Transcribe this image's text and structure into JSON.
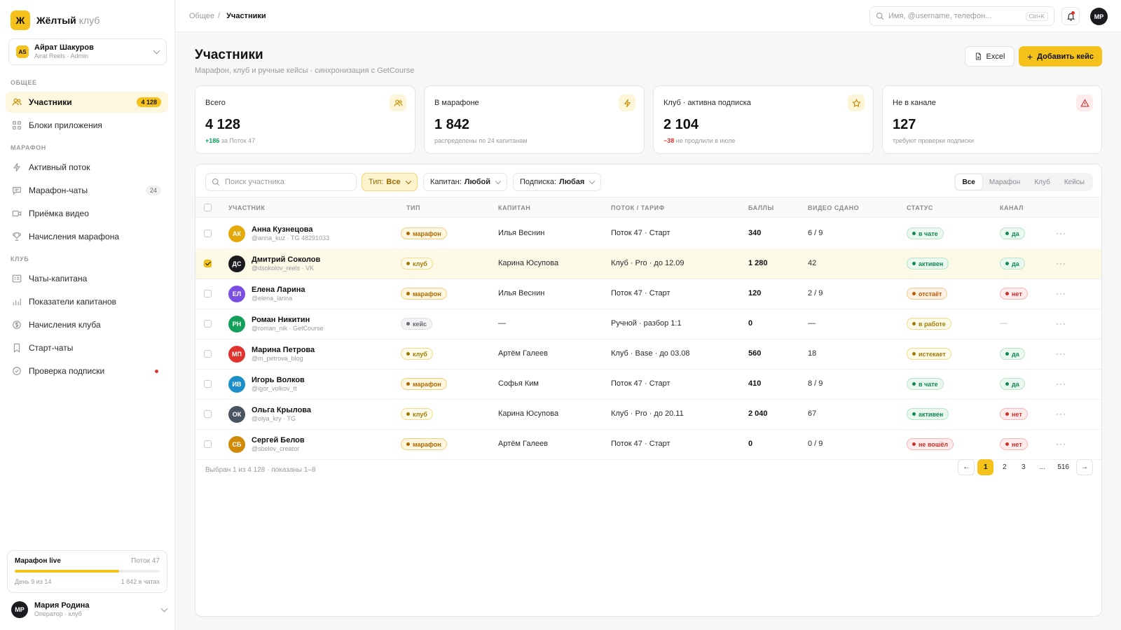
{
  "brand": {
    "mark": "Ж",
    "name": "Жёлтый",
    "name_suffix": "клуб"
  },
  "workspace": {
    "avatar": "AS",
    "name": "Айрат Шакуров",
    "sub": "Airat Reels · Admin"
  },
  "nav": {
    "section_general": "ОБЩЕЕ",
    "section_marathon": "МАРАФОН",
    "section_club": "КЛУБ",
    "items": [
      {
        "label": "Участники",
        "icon": "users-icon",
        "badge": "4 128"
      },
      {
        "label": "Блоки приложения",
        "icon": "grid-icon"
      },
      {
        "label": "Активный поток",
        "icon": "bolt-icon"
      },
      {
        "label": "Марафон-чаты",
        "icon": "chat-icon",
        "badge": "24"
      },
      {
        "label": "Приёмка видео",
        "icon": "video-icon"
      },
      {
        "label": "Начисления марафона",
        "icon": "trophy-icon"
      },
      {
        "label": "Чаты-капитана",
        "icon": "list-icon"
      },
      {
        "label": "Показатели капитанов",
        "icon": "chart-icon"
      },
      {
        "label": "Начисления клуба",
        "icon": "coin-icon"
      },
      {
        "label": "Старт-чаты",
        "icon": "bookmark-icon"
      },
      {
        "label": "Проверка подписки",
        "icon": "check-circle-icon"
      }
    ]
  },
  "live": {
    "title": "Марафон live",
    "stream": "Поток 47",
    "progress": 0.72,
    "day": "День 9 из 14",
    "in_chats": "1 842 в чатах"
  },
  "me": {
    "avatar": "МР",
    "name": "Мария Родина",
    "sub": "Оператор · клуб"
  },
  "topbar": {
    "crumb_parent": "Общее",
    "crumb_sep": "/",
    "crumb_current": "Участники",
    "search_placeholder": "Имя, @username, телефон...",
    "search_shortcut": "Ctrl+K",
    "avatar": "МР"
  },
  "header": {
    "title": "Участники",
    "subtitle": "Марафон, клуб и ручные кейсы · синхронизация с GetCourse",
    "excel_label": "Excel",
    "add_label": "Добавить кейс"
  },
  "stats": [
    {
      "label": "Всего",
      "value": "4 128",
      "accent": "+186",
      "note": "за Поток 47",
      "icon": "users-icon"
    },
    {
      "label": "В марафоне",
      "value": "1 842",
      "accent": "",
      "note": "распределены по 24 капитанам",
      "icon": "bolt-icon"
    },
    {
      "label": "Клуб · активна подписка",
      "value": "2 104",
      "accent": "−38",
      "note": "не продлили в июле",
      "icon": "star-icon"
    },
    {
      "label": "Не в канале",
      "value": "127",
      "accent": "",
      "note": "требуют проверки подписки",
      "icon": "warning-icon"
    }
  ],
  "filters": {
    "search_placeholder": "Поиск участника",
    "type_label": "Тип:",
    "type_value": "Все",
    "captain_label": "Капитан:",
    "captain_value": "Любой",
    "sub_label": "Подписка:",
    "sub_value": "Любая",
    "segments": [
      "Все",
      "Марафон",
      "Клуб",
      "Кейсы"
    ]
  },
  "columns": [
    "УЧАСТНИК",
    "ТИП",
    "КАПИТАН",
    "ПОТОК / ТАРИФ",
    "БАЛЛЫ",
    "ВИДЕО СДАНО",
    "СТАТУС",
    "КАНАЛ"
  ],
  "rows": [
    {
      "initials": "АК",
      "color": "#e3a90a",
      "name": "Анна Кузнецова",
      "handle": "@anna_kuz · TG 48291033",
      "type": "марафон",
      "type_kind": "marathon",
      "captain": "Илья Веснин",
      "plan": "Поток 47 · Старт",
      "points": "340",
      "video": "6 / 9",
      "status": "в чате",
      "status_kind": "green",
      "channel": "да",
      "channel_kind": "green",
      "checked": false
    },
    {
      "initials": "ДС",
      "color": "#1b1b1f",
      "name": "Дмитрий Соколов",
      "handle": "@dsokolov_reels · VK",
      "type": "клуб",
      "type_kind": "club",
      "captain": "Карина Юсупова",
      "plan": "Клуб · Pro · до 12.09",
      "points": "1 280",
      "video": "42",
      "status": "активен",
      "status_kind": "green",
      "channel": "да",
      "channel_kind": "green",
      "checked": true
    },
    {
      "initials": "ЕЛ",
      "color": "#7a4ee0",
      "name": "Елена Ларина",
      "handle": "@elena_larina",
      "type": "марафон",
      "type_kind": "marathon",
      "captain": "Илья Веснин",
      "plan": "Поток 47 · Старт",
      "points": "120",
      "video": "2 / 9",
      "status": "отстаёт",
      "status_kind": "orange",
      "channel": "нет",
      "channel_kind": "red",
      "checked": false
    },
    {
      "initials": "РН",
      "color": "#14a05a",
      "name": "Роман Никитин",
      "handle": "@roman_nik · GetCourse",
      "type": "кейс",
      "type_kind": "case",
      "captain": "—",
      "plan": "Ручной · разбор 1:1",
      "points": "0",
      "video": "—",
      "status": "в работе",
      "status_kind": "yellow",
      "channel": "—",
      "channel_kind": "none",
      "checked": false
    },
    {
      "initials": "МП",
      "color": "#e0322f",
      "name": "Марина Петрова",
      "handle": "@m_petrova_blog",
      "type": "клуб",
      "type_kind": "club",
      "captain": "Артём Галеев",
      "plan": "Клуб · Base · до 03.08",
      "points": "560",
      "video": "18",
      "status": "истекает",
      "status_kind": "yellow",
      "channel": "да",
      "channel_kind": "green",
      "checked": false
    },
    {
      "initials": "ИВ",
      "color": "#1c8fc9",
      "name": "Игорь Волков",
      "handle": "@igor_volkov_tt",
      "type": "марафон",
      "type_kind": "marathon",
      "captain": "Софья Ким",
      "plan": "Поток 47 · Старт",
      "points": "410",
      "video": "8 / 9",
      "status": "в чате",
      "status_kind": "green",
      "channel": "да",
      "channel_kind": "green",
      "checked": false
    },
    {
      "initials": "ОК",
      "color": "#4a5563",
      "name": "Ольга Крылова",
      "handle": "@olya_kry · TG",
      "type": "клуб",
      "type_kind": "club",
      "captain": "Карина Юсупова",
      "plan": "Клуб · Pro · до 20.11",
      "points": "2 040",
      "video": "67",
      "status": "активен",
      "status_kind": "green",
      "channel": "нет",
      "channel_kind": "red",
      "checked": false
    },
    {
      "initials": "СБ",
      "color": "#d08a0a",
      "name": "Сергей Белов",
      "handle": "@sbelov_creator",
      "type": "марафон",
      "type_kind": "marathon",
      "captain": "Артём Галеев",
      "plan": "Поток 47 · Старт",
      "points": "0",
      "video": "0 / 9",
      "status": "не вошёл",
      "status_kind": "red",
      "channel": "нет",
      "channel_kind": "red",
      "checked": false
    }
  ],
  "footer": {
    "summary": "Выбран 1 из 4 128 · показаны 1–8"
  },
  "pagination": {
    "prev": "←",
    "pages": [
      "1",
      "2",
      "3",
      "...",
      "516"
    ],
    "next": "→"
  }
}
